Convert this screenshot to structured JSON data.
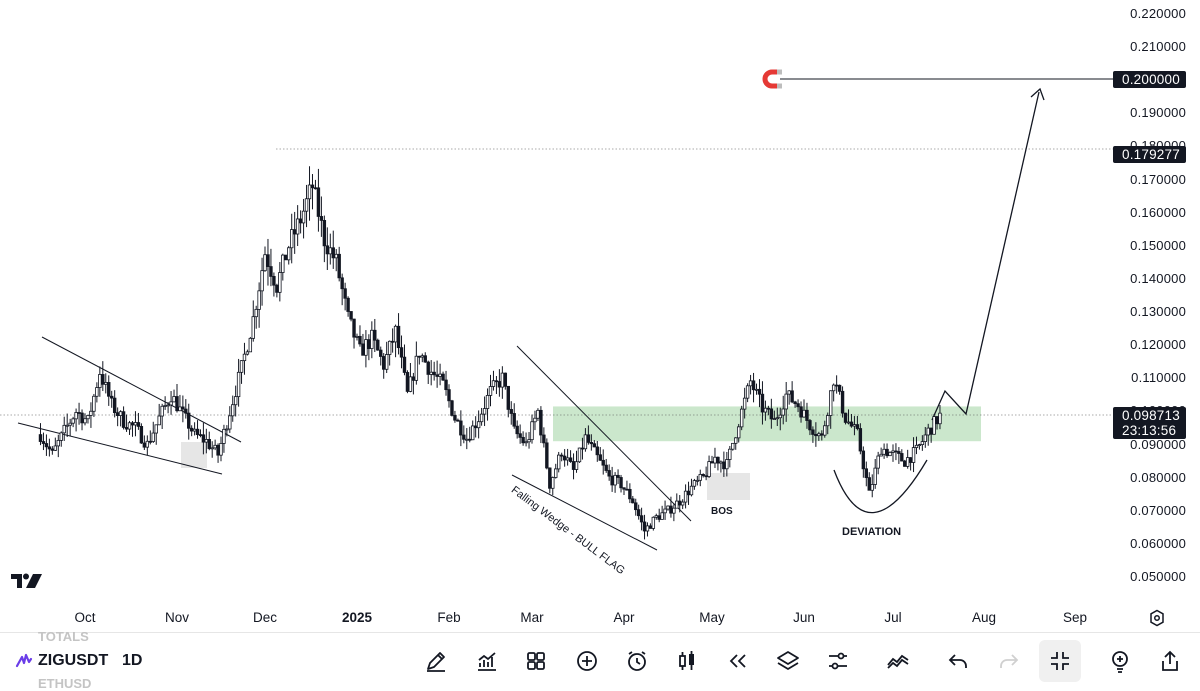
{
  "chart_data": {
    "type": "candlestick",
    "symbol": "ZIGUSDT",
    "interval": "1D",
    "ylim": [
      0.045,
      0.225
    ],
    "y_ticks": [
      "0.220000",
      "0.210000",
      "0.200000",
      "0.190000",
      "0.180000",
      "0.170000",
      "0.160000",
      "0.150000",
      "0.140000",
      "0.130000",
      "0.120000",
      "0.110000",
      "0.100000",
      "0.090000",
      "0.080000",
      "0.070000",
      "0.060000",
      "0.050000"
    ],
    "x_ticks": [
      {
        "label": "Oct",
        "bold": false
      },
      {
        "label": "Nov",
        "bold": false
      },
      {
        "label": "Dec",
        "bold": false
      },
      {
        "label": "2025",
        "bold": true
      },
      {
        "label": "Feb",
        "bold": false
      },
      {
        "label": "Mar",
        "bold": false
      },
      {
        "label": "Apr",
        "bold": false
      },
      {
        "label": "May",
        "bold": false
      },
      {
        "label": "Jun",
        "bold": false
      },
      {
        "label": "Jul",
        "bold": false
      },
      {
        "label": "Aug",
        "bold": false
      },
      {
        "label": "Sep",
        "bold": false
      }
    ],
    "price_path": [
      [
        "2024-09-16",
        0.093
      ],
      [
        "2024-09-20",
        0.087
      ],
      [
        "2024-09-24",
        0.094
      ],
      [
        "2024-09-28",
        0.1
      ],
      [
        "2024-10-02",
        0.097
      ],
      [
        "2024-10-06",
        0.112
      ],
      [
        "2024-10-10",
        0.102
      ],
      [
        "2024-10-14",
        0.097
      ],
      [
        "2024-10-18",
        0.095
      ],
      [
        "2024-10-22",
        0.09
      ],
      [
        "2024-10-26",
        0.098
      ],
      [
        "2024-10-30",
        0.105
      ],
      [
        "2024-11-03",
        0.099
      ],
      [
        "2024-11-07",
        0.093
      ],
      [
        "2024-11-11",
        0.091
      ],
      [
        "2024-11-15",
        0.087
      ],
      [
        "2024-11-19",
        0.1
      ],
      [
        "2024-11-23",
        0.113
      ],
      [
        "2024-11-27",
        0.128
      ],
      [
        "2024-12-01",
        0.148
      ],
      [
        "2024-12-05",
        0.138
      ],
      [
        "2024-12-09",
        0.15
      ],
      [
        "2024-12-13",
        0.158
      ],
      [
        "2024-12-17",
        0.168
      ],
      [
        "2024-12-21",
        0.152
      ],
      [
        "2024-12-25",
        0.145
      ],
      [
        "2024-12-29",
        0.128
      ],
      [
        "2025-01-02",
        0.118
      ],
      [
        "2025-01-06",
        0.122
      ],
      [
        "2025-01-10",
        0.114
      ],
      [
        "2025-01-14",
        0.124
      ],
      [
        "2025-01-18",
        0.105
      ],
      [
        "2025-01-22",
        0.118
      ],
      [
        "2025-01-26",
        0.112
      ],
      [
        "2025-01-30",
        0.108
      ],
      [
        "2025-02-03",
        0.098
      ],
      [
        "2025-02-07",
        0.092
      ],
      [
        "2025-02-11",
        0.098
      ],
      [
        "2025-02-15",
        0.106
      ],
      [
        "2025-02-19",
        0.11
      ],
      [
        "2025-02-23",
        0.094
      ],
      [
        "2025-02-27",
        0.09
      ],
      [
        "2025-03-03",
        0.1
      ],
      [
        "2025-03-07",
        0.078
      ],
      [
        "2025-03-11",
        0.088
      ],
      [
        "2025-03-15",
        0.082
      ],
      [
        "2025-03-19",
        0.092
      ],
      [
        "2025-03-23",
        0.086
      ],
      [
        "2025-03-27",
        0.08
      ],
      [
        "2025-03-31",
        0.078
      ],
      [
        "2025-04-04",
        0.073
      ],
      [
        "2025-04-08",
        0.064
      ],
      [
        "2025-04-12",
        0.068
      ],
      [
        "2025-04-16",
        0.07
      ],
      [
        "2025-04-20",
        0.073
      ],
      [
        "2025-04-24",
        0.077
      ],
      [
        "2025-04-28",
        0.08
      ],
      [
        "2025-05-02",
        0.086
      ],
      [
        "2025-05-06",
        0.084
      ],
      [
        "2025-05-10",
        0.097
      ],
      [
        "2025-05-14",
        0.109
      ],
      [
        "2025-05-18",
        0.101
      ],
      [
        "2025-05-22",
        0.097
      ],
      [
        "2025-05-26",
        0.105
      ],
      [
        "2025-05-30",
        0.102
      ],
      [
        "2025-06-03",
        0.096
      ],
      [
        "2025-06-07",
        0.092
      ],
      [
        "2025-06-11",
        0.11
      ],
      [
        "2025-06-15",
        0.098
      ],
      [
        "2025-06-19",
        0.093
      ],
      [
        "2025-06-23",
        0.075
      ],
      [
        "2025-06-27",
        0.089
      ],
      [
        "2025-07-01",
        0.087
      ],
      [
        "2025-07-05",
        0.085
      ],
      [
        "2025-07-09",
        0.088
      ],
      [
        "2025-07-13",
        0.094
      ],
      [
        "2025-07-17",
        0.0987
      ]
    ],
    "last_price": "0.098713",
    "countdown": "23:13:56",
    "high_marker": "0.179277",
    "target_marker": "0.200000",
    "zones": [
      {
        "type": "support-resistance",
        "from": 0.091,
        "to": 0.1015,
        "color": "#c8e6c9"
      }
    ],
    "annotations": [
      "Falling Wedge - BULL FLAG",
      "BOS",
      "DEVIATION"
    ],
    "grid": false
  },
  "toolbar": {
    "ghost_top": "TOTALS",
    "ghost_bottom": "ETHUSD",
    "symbol": "ZIGUSDT",
    "interval": "1D",
    "buttons": [
      "pencil-icon",
      "indicators-icon",
      "layout-icon",
      "add-icon",
      "alarm-icon",
      "candles-icon",
      "replay-icon",
      "layers-icon",
      "settings-sliders-icon",
      "compare-icon",
      "undo-icon",
      "redo-icon",
      "collapse-icon",
      "lightbulb-icon",
      "share-icon"
    ]
  },
  "colors": {
    "candle_up": "#ffffff",
    "candle_down": "#131722",
    "zone": "#c8e6c9",
    "magnet": "#e53935",
    "tag_bg": "#131722"
  }
}
